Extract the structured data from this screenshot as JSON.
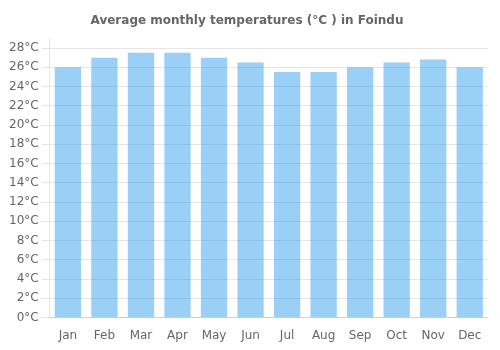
{
  "chart_data": {
    "type": "bar",
    "title": "Average monthly temperatures (°C ) in Foindu",
    "categories": [
      "Jan",
      "Feb",
      "Mar",
      "Apr",
      "May",
      "Jun",
      "Jul",
      "Aug",
      "Sep",
      "Oct",
      "Nov",
      "Dec"
    ],
    "values": [
      26,
      27,
      27.5,
      27.5,
      27,
      26.5,
      25.5,
      25.5,
      26,
      26.5,
      26.8,
      26
    ],
    "ylim": [
      0,
      29
    ],
    "yticks": [
      {
        "value": 0,
        "label": "0°C"
      },
      {
        "value": 2,
        "label": "2°C"
      },
      {
        "value": 4,
        "label": "4°C"
      },
      {
        "value": 6,
        "label": "6°C"
      },
      {
        "value": 8,
        "label": "8°C"
      },
      {
        "value": 10,
        "label": "10°C"
      },
      {
        "value": 12,
        "label": "12°C"
      },
      {
        "value": 14,
        "label": "14°C"
      },
      {
        "value": 16,
        "label": "16°C"
      },
      {
        "value": 18,
        "label": "18°C"
      },
      {
        "value": 20,
        "label": "20°C"
      },
      {
        "value": 22,
        "label": "22°C"
      },
      {
        "value": 24,
        "label": "24°C"
      },
      {
        "value": 26,
        "label": "26°C"
      },
      {
        "value": 28,
        "label": "28°C"
      }
    ],
    "grid": true
  }
}
